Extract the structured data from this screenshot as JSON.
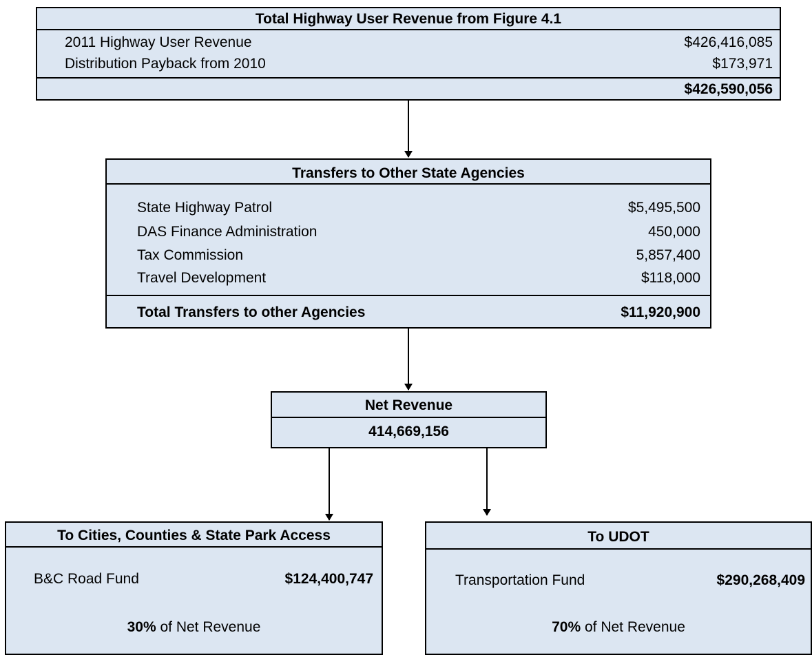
{
  "revenue": {
    "title": "Total Highway User Revenue from Figure 4.1",
    "rows": [
      [
        "2011 Highway User Revenue",
        "$426,416,085"
      ],
      [
        "Distribution Payback from 2010",
        "$173,971"
      ]
    ],
    "total": "$426,590,056"
  },
  "transfers": {
    "title": "Transfers to Other State Agencies",
    "rows": [
      [
        "State Highway Patrol",
        "$5,495,500"
      ],
      [
        "DAS Finance Administration",
        "450,000"
      ],
      [
        "Tax Commission",
        "5,857,400"
      ],
      [
        "Travel Development",
        "$118,000"
      ]
    ],
    "total_label": "Total Transfers to other Agencies",
    "total": "$11,920,900"
  },
  "net": {
    "title": "Net Revenue",
    "value": "414,669,156"
  },
  "cities": {
    "title": "To Cities, Counties & State Park Access",
    "fund": "B&C Road Fund",
    "amount": "$124,400,747",
    "share": "30%",
    "share_text": "of Net Revenue"
  },
  "udot": {
    "title": "To UDOT",
    "fund": "Transportation Fund",
    "amount": "$290,268,409",
    "share": "70%",
    "share_text": "of Net Revenue"
  }
}
